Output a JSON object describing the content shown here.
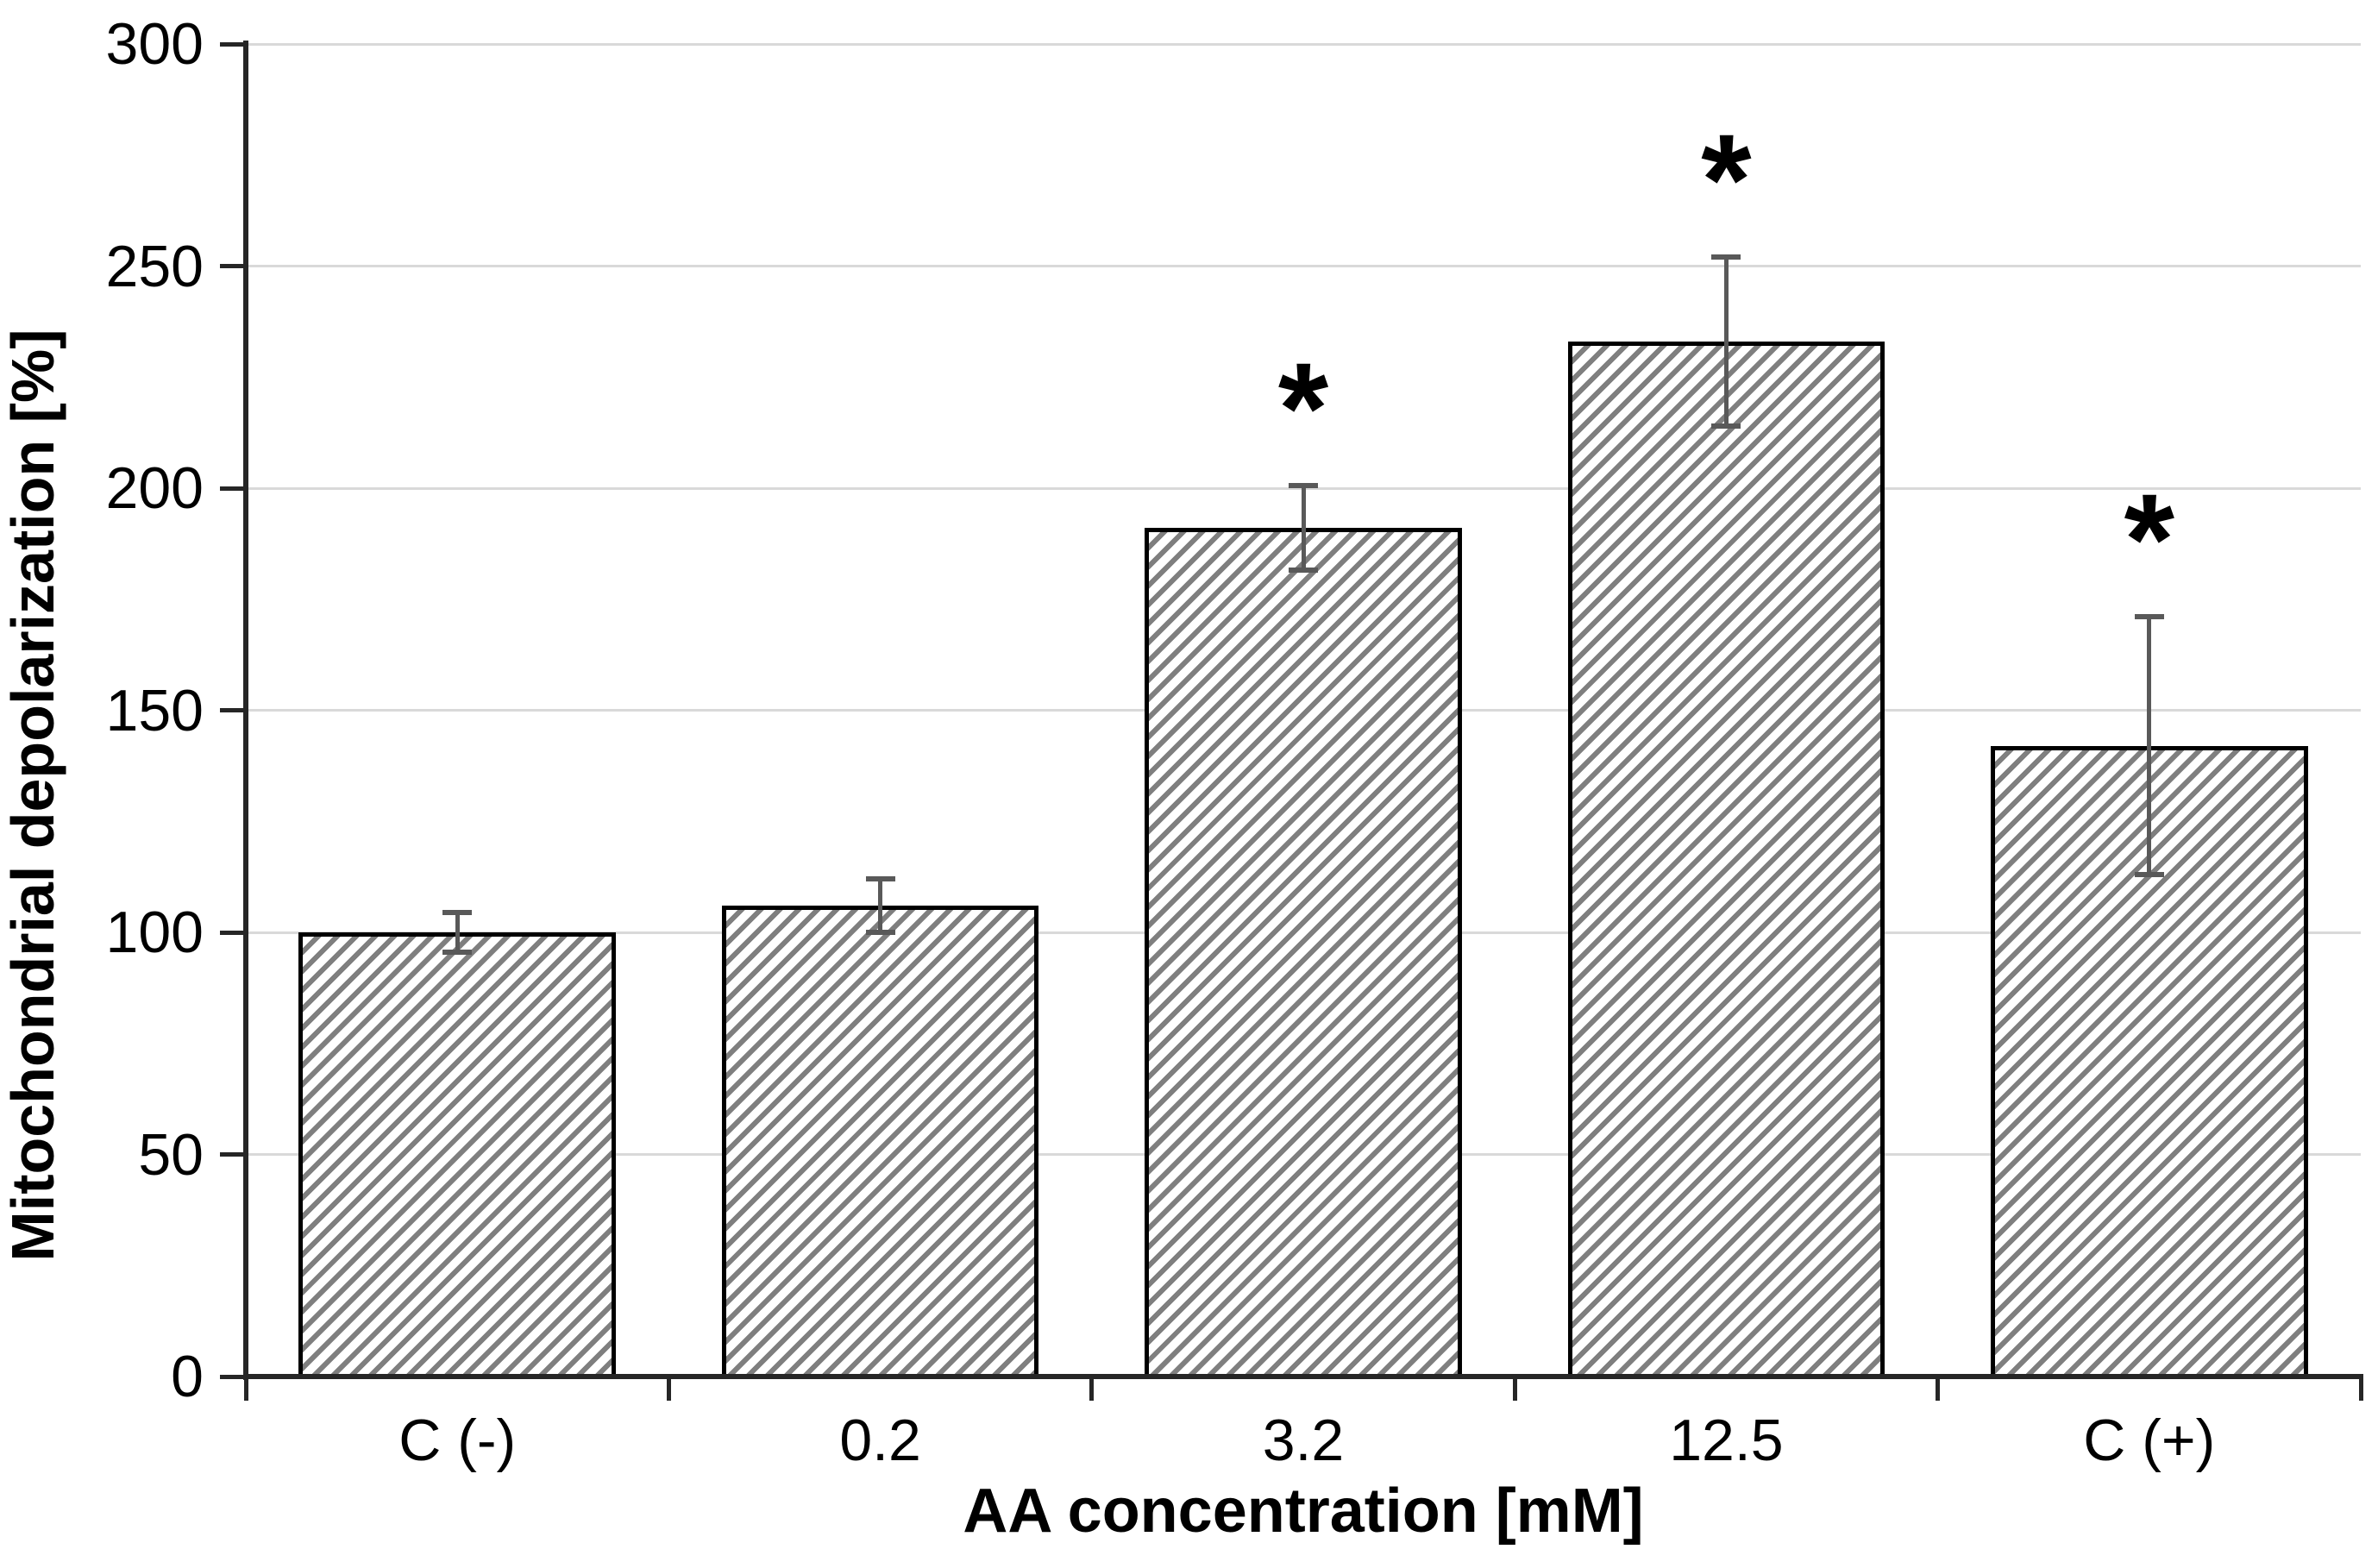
{
  "chart_data": {
    "type": "bar",
    "xlabel": "AA concentration [mM]",
    "ylabel": "Mitochondrial depolarization [%]",
    "categories": [
      "C (-)",
      "0.2",
      "3.2",
      "12.5",
      "C (+)"
    ],
    "values": [
      100,
      106,
      191,
      233,
      142
    ],
    "error_bars": [
      4.5,
      6,
      9.5,
      19,
      29
    ],
    "significant": [
      false,
      false,
      true,
      true,
      true
    ],
    "significance_marker": "*",
    "ylim": [
      0,
      300
    ],
    "yticks": [
      0,
      50,
      100,
      150,
      200,
      250,
      300
    ],
    "grid": true,
    "legend": "none",
    "style": {
      "bar_fill": "white-with-diagonal-hatch",
      "hatch_color": "#7f7f7f",
      "bar_border_color": "#000000",
      "error_bar_color": "#595959",
      "gridline_color": "#d9d9d9",
      "axis_color": "#262626",
      "text_color": "#000000"
    }
  }
}
